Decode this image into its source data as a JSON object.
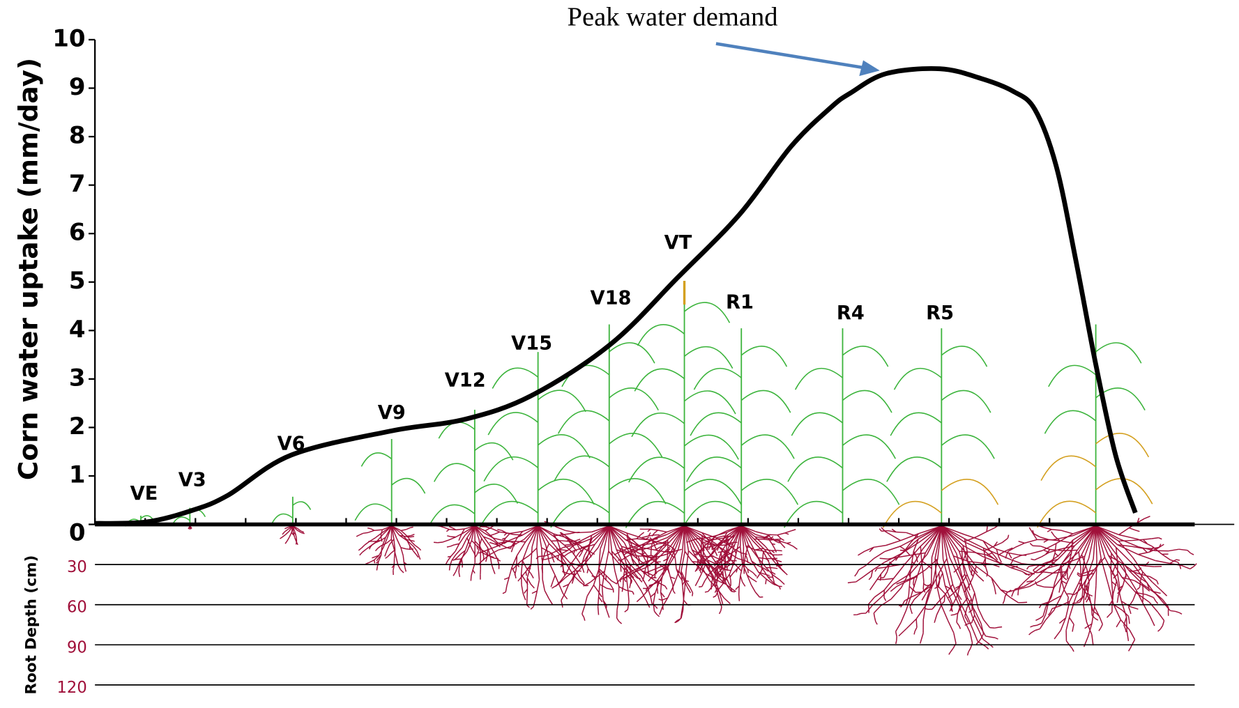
{
  "chart_data": {
    "type": "line",
    "y_label": "Corn water uptake (mm/day)",
    "annotation": "Peak water demand",
    "categories": [
      null,
      "VE",
      "V3",
      null,
      "V6",
      "V9",
      "V12",
      "V15",
      "V18",
      "VT",
      "R1",
      null,
      null,
      "R4",
      null,
      "R5",
      null,
      null,
      null,
      null,
      null,
      null,
      null,
      null
    ],
    "values": [
      0.02,
      0.05,
      0.29,
      0.6,
      1.43,
      1.93,
      2.17,
      2.66,
      3.72,
      5.1,
      6.4,
      7.8,
      8.6,
      8.9,
      9.3,
      9.4,
      9.2,
      8.94,
      8.56,
      7.39,
      5.43,
      3.3,
      1.43,
      0.24
    ],
    "color": "#000000",
    "ylim": [
      0,
      10
    ],
    "yticks": [
      0,
      1,
      2,
      3,
      4,
      5,
      6,
      7,
      8,
      9,
      10
    ],
    "root_depth": {
      "label": "Root Depth (cm)",
      "lim": [
        0,
        120
      ],
      "ticks": [
        30,
        60,
        90,
        120
      ],
      "color": "#a0103a"
    }
  }
}
